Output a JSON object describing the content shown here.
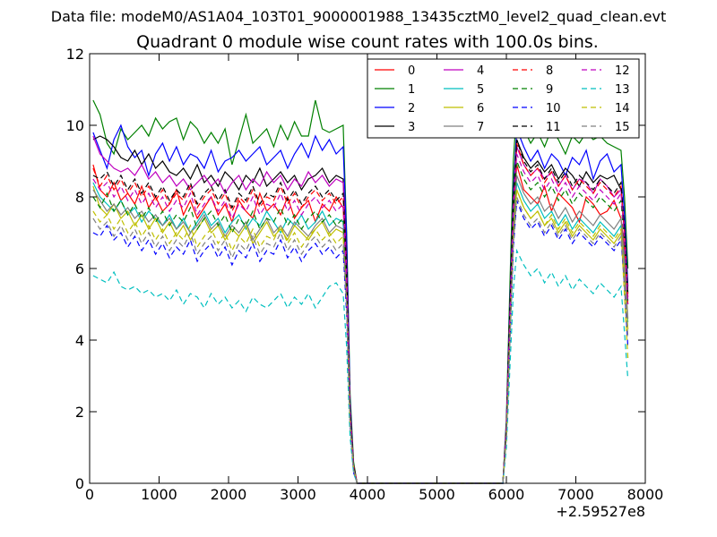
{
  "suptitle": "Data file: modeM0/AS1A04_103T01_9000001988_13435cztM0_level2_quad_clean.evt",
  "chart_data": {
    "type": "line",
    "title": "Quadrant 0 module wise count rates with 100.0s bins.",
    "xlabel": "",
    "ylabel": "",
    "x_offset_label": "+2.59527e8",
    "xlim": [
      0,
      8000
    ],
    "ylim": [
      0,
      12
    ],
    "x_ticks": [
      "0",
      "1000",
      "2000",
      "3000",
      "4000",
      "5000",
      "6000",
      "7000",
      "8000"
    ],
    "y_ticks": [
      "0",
      "2",
      "4",
      "6",
      "8",
      "10",
      "12"
    ],
    "grid": false,
    "legend_placement": "top-right",
    "legend_columns": 4,
    "x": [
      50,
      150,
      250,
      350,
      450,
      550,
      650,
      750,
      850,
      950,
      1050,
      1150,
      1250,
      1350,
      1450,
      1550,
      1650,
      1750,
      1850,
      1950,
      2050,
      2150,
      2250,
      2350,
      2450,
      2550,
      2650,
      2750,
      2850,
      2950,
      3050,
      3150,
      3250,
      3350,
      3450,
      3550,
      3650,
      3700,
      3750,
      3800,
      3850,
      3900,
      3950,
      4000,
      5500,
      5950,
      6000,
      6050,
      6100,
      6150,
      6250,
      6350,
      6450,
      6550,
      6650,
      6750,
      6850,
      6950,
      7050,
      7150,
      7250,
      7350,
      7450,
      7550,
      7650,
      7700,
      7750
    ],
    "series": [
      {
        "name": "0",
        "color": "#ff0000",
        "dash": "solid",
        "values": [
          8.9,
          8.2,
          8.0,
          8.4,
          7.9,
          8.1,
          7.8,
          8.3,
          7.7,
          8.0,
          7.6,
          7.8,
          8.2,
          7.5,
          7.9,
          7.4,
          7.7,
          8.0,
          7.5,
          7.8,
          7.3,
          7.9,
          7.6,
          7.4,
          8.1,
          7.6,
          7.8,
          7.5,
          8.0,
          7.4,
          7.7,
          7.9,
          7.3,
          7.8,
          7.6,
          8.0,
          7.7,
          5.5,
          2.0,
          0.5,
          0.0,
          0.0,
          0.0,
          0.0,
          0.0,
          0.0,
          1.5,
          4.5,
          7.5,
          8.9,
          8.2,
          8.0,
          7.8,
          8.3,
          7.6,
          8.1,
          7.9,
          7.7,
          7.3,
          8.0,
          7.8,
          7.5,
          7.6,
          7.9,
          7.4,
          6.5,
          5.0
        ]
      },
      {
        "name": "1",
        "color": "#008000",
        "dash": "solid",
        "values": [
          10.7,
          10.3,
          9.5,
          9.2,
          9.9,
          9.6,
          9.8,
          10.0,
          9.7,
          10.2,
          9.9,
          10.1,
          10.2,
          9.6,
          10.1,
          9.9,
          9.5,
          9.8,
          9.5,
          9.9,
          8.9,
          9.6,
          10.3,
          9.5,
          9.7,
          9.9,
          9.4,
          10.0,
          9.6,
          10.1,
          9.7,
          9.7,
          10.7,
          9.9,
          9.8,
          9.9,
          10.0,
          7.0,
          2.5,
          0.6,
          0.0,
          0.0,
          0.0,
          0.0,
          0.0,
          0.0,
          1.8,
          5.5,
          9.0,
          10.5,
          9.9,
          9.5,
          9.8,
          9.4,
          9.9,
          9.6,
          9.2,
          9.7,
          9.5,
          9.8,
          9.6,
          9.7,
          9.5,
          9.4,
          9.3,
          8.0,
          6.0
        ]
      },
      {
        "name": "2",
        "color": "#0000ff",
        "dash": "solid",
        "values": [
          9.8,
          9.3,
          8.8,
          9.6,
          10.0,
          9.4,
          9.1,
          9.3,
          8.6,
          9.2,
          9.5,
          9.0,
          9.4,
          8.9,
          9.2,
          9.1,
          8.8,
          9.3,
          8.7,
          9.0,
          9.1,
          9.3,
          9.0,
          9.2,
          9.4,
          8.9,
          9.1,
          9.3,
          8.8,
          9.2,
          9.5,
          9.1,
          9.7,
          9.3,
          9.6,
          9.2,
          9.4,
          6.8,
          2.3,
          0.5,
          0.0,
          0.0,
          0.0,
          0.0,
          0.0,
          0.0,
          1.7,
          5.0,
          8.2,
          9.9,
          9.4,
          9.0,
          9.3,
          8.8,
          9.2,
          9.0,
          8.6,
          9.1,
          8.9,
          9.3,
          8.5,
          9.0,
          9.2,
          8.7,
          8.9,
          7.5,
          5.5
        ]
      },
      {
        "name": "3",
        "color": "#000000",
        "dash": "solid",
        "values": [
          9.6,
          9.7,
          9.6,
          9.4,
          9.1,
          9.0,
          9.3,
          8.9,
          9.2,
          8.8,
          9.0,
          8.7,
          8.6,
          8.8,
          8.5,
          8.9,
          8.4,
          8.6,
          8.3,
          8.7,
          8.5,
          8.2,
          8.6,
          8.4,
          8.8,
          8.3,
          8.5,
          8.7,
          8.4,
          8.6,
          8.2,
          8.5,
          8.6,
          8.8,
          8.4,
          8.6,
          8.5,
          6.2,
          2.1,
          0.5,
          0.0,
          0.0,
          0.0,
          0.0,
          0.0,
          0.0,
          1.6,
          4.8,
          7.9,
          9.6,
          9.1,
          8.8,
          9.0,
          8.7,
          8.9,
          8.5,
          8.8,
          8.6,
          8.3,
          8.7,
          8.4,
          8.6,
          8.5,
          8.6,
          8.2,
          7.0,
          5.3
        ]
      },
      {
        "name": "4",
        "color": "#bf00bf",
        "dash": "solid",
        "values": [
          9.7,
          9.2,
          9.0,
          8.8,
          8.7,
          8.8,
          8.6,
          8.9,
          8.5,
          8.7,
          8.4,
          8.6,
          8.3,
          8.5,
          8.2,
          8.4,
          8.6,
          8.3,
          8.5,
          8.1,
          8.4,
          8.6,
          8.2,
          8.5,
          8.3,
          8.7,
          8.4,
          8.6,
          8.2,
          8.5,
          8.3,
          8.7,
          8.4,
          8.6,
          8.3,
          8.5,
          8.4,
          6.0,
          2.0,
          0.5,
          0.0,
          0.0,
          0.0,
          0.0,
          0.0,
          0.0,
          1.5,
          4.6,
          7.8,
          9.4,
          8.9,
          8.6,
          8.8,
          8.5,
          8.7,
          8.3,
          8.6,
          8.2,
          8.5,
          8.4,
          8.1,
          8.5,
          8.3,
          8.0,
          8.2,
          6.9,
          5.1
        ]
      },
      {
        "name": "5",
        "color": "#00bfbf",
        "dash": "solid",
        "values": [
          8.4,
          8.0,
          7.8,
          7.6,
          7.9,
          7.5,
          7.7,
          7.3,
          7.6,
          7.4,
          7.2,
          7.5,
          7.1,
          7.4,
          7.0,
          7.3,
          7.6,
          7.2,
          7.4,
          7.0,
          7.3,
          7.5,
          7.1,
          7.4,
          7.2,
          7.6,
          7.3,
          7.0,
          7.4,
          7.2,
          7.5,
          7.1,
          7.3,
          7.6,
          7.2,
          7.4,
          7.3,
          5.2,
          1.8,
          0.4,
          0.0,
          0.0,
          0.0,
          0.0,
          0.0,
          0.0,
          1.4,
          4.2,
          7.0,
          8.4,
          7.9,
          7.6,
          7.8,
          7.4,
          7.6,
          7.2,
          7.5,
          7.1,
          7.4,
          7.2,
          7.0,
          7.3,
          7.1,
          6.9,
          7.2,
          6.0,
          4.5
        ]
      },
      {
        "name": "6",
        "color": "#bfbf00",
        "dash": "solid",
        "values": [
          8.3,
          7.7,
          7.5,
          7.8,
          7.4,
          7.6,
          7.2,
          7.5,
          7.1,
          7.4,
          7.0,
          7.3,
          6.9,
          7.2,
          6.8,
          7.1,
          7.4,
          7.0,
          7.2,
          6.8,
          7.1,
          6.9,
          7.2,
          6.7,
          7.0,
          7.3,
          6.9,
          7.1,
          6.8,
          7.2,
          7.0,
          6.8,
          7.1,
          7.3,
          6.9,
          7.1,
          7.0,
          5.0,
          1.7,
          0.4,
          0.0,
          0.0,
          0.0,
          0.0,
          0.0,
          0.0,
          1.3,
          4.0,
          6.8,
          8.2,
          7.7,
          7.4,
          7.6,
          7.2,
          7.4,
          7.0,
          7.3,
          6.9,
          7.2,
          7.0,
          6.8,
          7.1,
          6.9,
          6.7,
          7.0,
          5.8,
          4.3
        ]
      },
      {
        "name": "7",
        "color": "#808080",
        "dash": "solid",
        "values": [
          8.2,
          7.9,
          7.6,
          7.8,
          7.5,
          7.7,
          7.4,
          7.6,
          7.3,
          7.5,
          7.2,
          7.4,
          7.1,
          7.3,
          7.0,
          7.2,
          7.5,
          7.1,
          7.3,
          6.9,
          7.2,
          7.0,
          7.3,
          6.8,
          7.1,
          7.4,
          7.0,
          7.2,
          6.9,
          7.3,
          7.1,
          6.9,
          7.2,
          7.4,
          7.0,
          7.2,
          7.1,
          5.1,
          1.8,
          0.4,
          0.0,
          0.0,
          0.0,
          0.0,
          0.0,
          0.0,
          1.4,
          4.3,
          7.2,
          8.6,
          8.1,
          7.8,
          8.0,
          7.6,
          7.8,
          7.4,
          7.7,
          7.3,
          7.6,
          7.4,
          7.2,
          7.5,
          7.3,
          7.1,
          7.4,
          6.2,
          4.6
        ]
      },
      {
        "name": "8",
        "color": "#ff0000",
        "dash": "dashed",
        "values": [
          8.8,
          8.3,
          8.6,
          8.2,
          8.5,
          8.1,
          8.4,
          8.0,
          8.3,
          7.9,
          8.2,
          7.8,
          8.1,
          7.9,
          8.3,
          7.7,
          8.0,
          8.2,
          7.8,
          8.1,
          7.6,
          8.0,
          7.8,
          8.2,
          7.7,
          8.0,
          7.9,
          8.3,
          7.8,
          8.1,
          7.7,
          8.0,
          8.2,
          7.9,
          8.1,
          7.8,
          8.0,
          5.8,
          2.0,
          0.5,
          0.0,
          0.0,
          0.0,
          0.0,
          0.0,
          0.0,
          1.6,
          4.7,
          7.9,
          9.5,
          8.9,
          8.6,
          8.8,
          8.4,
          8.7,
          8.3,
          8.6,
          8.2,
          8.5,
          8.3,
          8.1,
          8.4,
          8.2,
          8.0,
          8.3,
          7.0,
          5.2
        ]
      },
      {
        "name": "9",
        "color": "#008000",
        "dash": "dashed",
        "values": [
          8.0,
          7.7,
          8.1,
          7.6,
          7.9,
          7.5,
          7.8,
          7.4,
          7.7,
          7.3,
          7.6,
          7.2,
          7.5,
          7.3,
          7.7,
          7.1,
          7.4,
          7.6,
          7.2,
          7.5,
          7.0,
          7.4,
          7.2,
          7.6,
          7.1,
          7.4,
          7.3,
          7.7,
          7.2,
          7.5,
          7.1,
          7.4,
          7.6,
          7.3,
          7.5,
          7.2,
          7.4,
          5.4,
          1.9,
          0.4,
          0.0,
          0.0,
          0.0,
          0.0,
          0.0,
          0.0,
          1.5,
          4.5,
          7.5,
          9.0,
          8.5,
          8.2,
          8.4,
          8.0,
          8.3,
          7.9,
          8.2,
          7.8,
          8.1,
          7.9,
          7.7,
          8.0,
          7.8,
          7.6,
          7.9,
          6.7,
          5.0
        ]
      },
      {
        "name": "10",
        "color": "#0000ff",
        "dash": "dashed",
        "values": [
          7.0,
          6.9,
          7.2,
          6.8,
          7.0,
          6.6,
          6.9,
          6.5,
          6.8,
          6.4,
          6.7,
          6.3,
          6.6,
          6.4,
          6.8,
          6.2,
          6.5,
          6.7,
          6.3,
          6.6,
          6.1,
          6.5,
          6.3,
          6.7,
          6.2,
          6.5,
          6.4,
          6.8,
          6.3,
          6.6,
          6.2,
          6.5,
          6.7,
          6.4,
          6.6,
          6.3,
          6.5,
          4.7,
          1.6,
          0.3,
          0.0,
          0.0,
          0.0,
          0.0,
          0.0,
          0.0,
          1.3,
          3.9,
          6.6,
          7.9,
          7.4,
          7.1,
          7.3,
          6.9,
          7.2,
          6.8,
          7.1,
          6.7,
          7.0,
          6.8,
          6.6,
          6.9,
          6.7,
          6.5,
          6.8,
          5.5,
          3.8
        ]
      },
      {
        "name": "11",
        "color": "#000000",
        "dash": "dashed",
        "values": [
          8.6,
          8.5,
          8.7,
          8.3,
          8.6,
          8.2,
          8.5,
          8.1,
          8.4,
          8.0,
          8.3,
          7.9,
          8.2,
          8.0,
          8.4,
          7.8,
          8.1,
          8.3,
          7.9,
          8.2,
          7.7,
          8.1,
          7.9,
          8.3,
          7.8,
          8.1,
          8.0,
          8.4,
          7.9,
          8.2,
          7.8,
          8.1,
          8.3,
          8.0,
          8.2,
          7.9,
          8.1,
          5.9,
          2.0,
          0.5,
          0.0,
          0.0,
          0.0,
          0.0,
          0.0,
          0.0,
          1.6,
          4.8,
          8.0,
          9.6,
          9.0,
          8.7,
          8.9,
          8.5,
          8.8,
          8.4,
          8.7,
          8.3,
          8.6,
          8.4,
          8.2,
          8.5,
          8.3,
          8.1,
          8.4,
          7.1,
          5.3
        ]
      },
      {
        "name": "12",
        "color": "#bf00bf",
        "dash": "dashed",
        "values": [
          8.5,
          8.2,
          8.4,
          8.0,
          8.3,
          7.9,
          8.2,
          7.8,
          8.1,
          7.7,
          8.0,
          7.6,
          7.9,
          7.7,
          8.1,
          7.5,
          7.8,
          8.0,
          7.6,
          7.9,
          7.4,
          7.8,
          7.6,
          8.0,
          7.5,
          7.8,
          7.7,
          8.1,
          7.6,
          7.9,
          7.5,
          7.8,
          8.0,
          7.7,
          7.9,
          7.6,
          7.8,
          5.6,
          1.9,
          0.4,
          0.0,
          0.0,
          0.0,
          0.0,
          0.0,
          0.0,
          1.5,
          4.6,
          7.7,
          9.2,
          8.7,
          8.4,
          8.6,
          8.2,
          8.5,
          8.1,
          8.4,
          8.0,
          8.3,
          8.1,
          7.9,
          8.2,
          8.0,
          7.8,
          8.1,
          6.8,
          5.0
        ]
      },
      {
        "name": "13",
        "color": "#00bfbf",
        "dash": "dashed",
        "values": [
          5.8,
          5.7,
          5.6,
          5.9,
          5.5,
          5.4,
          5.5,
          5.3,
          5.4,
          5.2,
          5.3,
          5.1,
          5.4,
          5.0,
          5.3,
          5.2,
          4.9,
          5.3,
          5.0,
          5.2,
          4.9,
          5.1,
          4.8,
          5.2,
          5.0,
          4.9,
          5.1,
          5.3,
          4.9,
          5.2,
          5.0,
          5.3,
          4.9,
          5.2,
          5.5,
          5.6,
          5.3,
          3.8,
          1.3,
          0.3,
          0.0,
          0.0,
          0.0,
          0.0,
          0.0,
          0.0,
          1.0,
          3.2,
          5.4,
          6.5,
          6.1,
          5.8,
          6.0,
          5.6,
          5.9,
          5.5,
          5.8,
          5.4,
          5.7,
          5.5,
          5.3,
          5.6,
          5.4,
          5.2,
          5.5,
          4.2,
          2.9
        ]
      },
      {
        "name": "14",
        "color": "#bfbf00",
        "dash": "dashed",
        "values": [
          7.6,
          7.3,
          7.5,
          7.1,
          7.4,
          7.0,
          7.3,
          6.9,
          7.2,
          6.8,
          7.1,
          6.7,
          7.0,
          6.8,
          7.2,
          6.6,
          6.9,
          7.1,
          6.7,
          7.0,
          6.5,
          6.9,
          6.7,
          7.1,
          6.6,
          6.9,
          6.8,
          7.2,
          6.7,
          7.0,
          6.6,
          6.9,
          7.1,
          6.8,
          7.0,
          6.7,
          6.9,
          5.0,
          1.7,
          0.4,
          0.0,
          0.0,
          0.0,
          0.0,
          0.0,
          0.0,
          1.3,
          4.1,
          6.9,
          8.2,
          7.7,
          7.4,
          7.6,
          7.2,
          7.5,
          7.1,
          7.4,
          7.0,
          7.3,
          7.1,
          6.9,
          7.2,
          7.0,
          6.8,
          7.1,
          5.2,
          3.5
        ]
      },
      {
        "name": "15",
        "color": "#808080",
        "dash": "dashed",
        "values": [
          7.4,
          7.1,
          7.3,
          6.9,
          7.2,
          6.8,
          7.1,
          6.7,
          7.0,
          6.6,
          6.9,
          6.5,
          6.8,
          6.6,
          7.0,
          6.4,
          6.7,
          6.9,
          6.5,
          6.8,
          6.3,
          6.7,
          6.5,
          6.9,
          6.4,
          6.7,
          6.6,
          7.0,
          6.5,
          6.8,
          6.4,
          6.7,
          6.9,
          6.6,
          6.8,
          6.5,
          6.7,
          4.9,
          1.7,
          0.4,
          0.0,
          0.0,
          0.0,
          0.0,
          0.0,
          0.0,
          1.3,
          4.0,
          6.7,
          8.0,
          7.5,
          7.2,
          7.4,
          7.0,
          7.3,
          6.9,
          7.2,
          6.8,
          7.1,
          6.9,
          6.7,
          7.0,
          6.8,
          6.6,
          6.9,
          5.6,
          4.1
        ]
      }
    ]
  }
}
